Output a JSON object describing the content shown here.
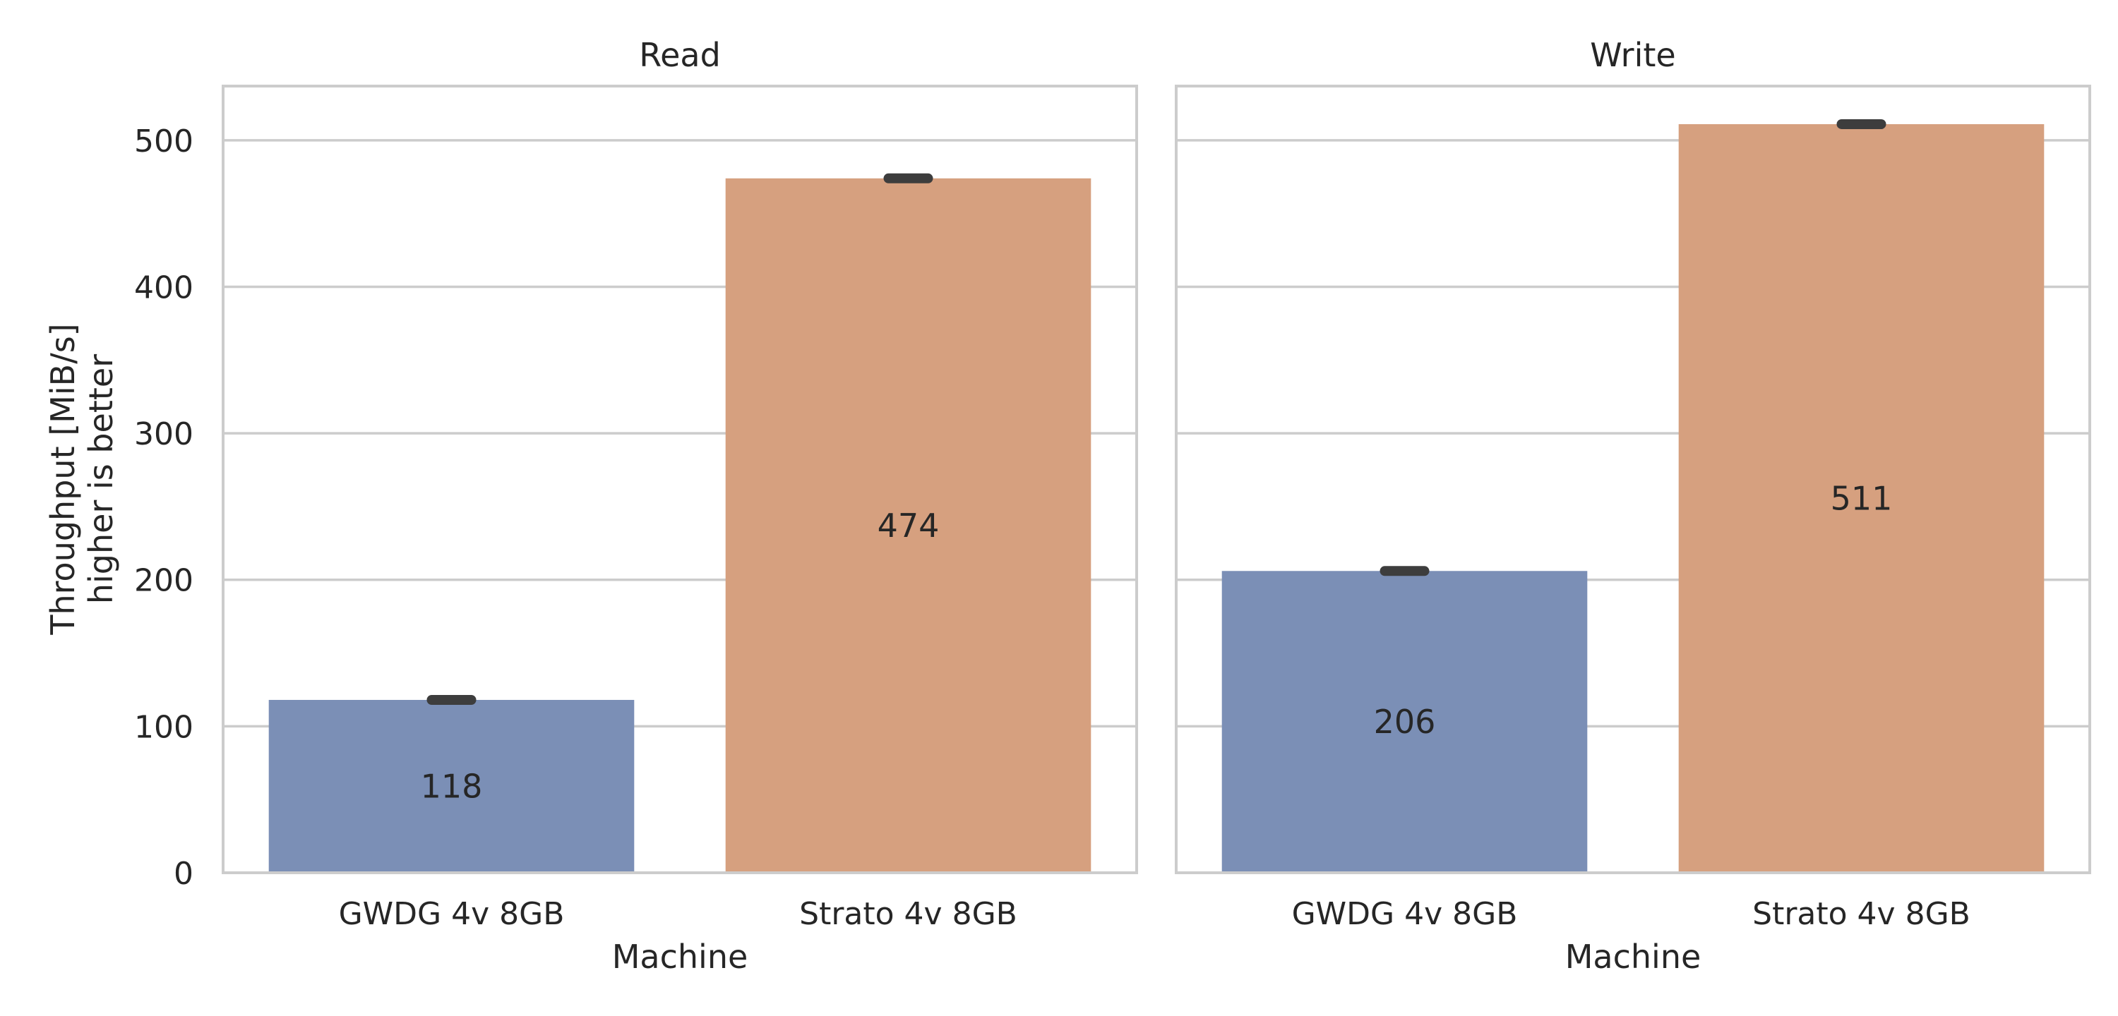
{
  "chart_data": {
    "type": "bar",
    "ylabel": "Throughput  [MiB/s]\nhigher is better",
    "ylim": [
      0,
      537
    ],
    "yticks": [
      0,
      100,
      200,
      300,
      400,
      500
    ],
    "grid": true,
    "shared_y": true,
    "colors": {
      "GWDG 4v 8GB": "#7b8fb6",
      "Strato 4v 8GB": "#d6a07f"
    },
    "panels": [
      {
        "title": "Read",
        "xlabel": "Machine",
        "categories": [
          "GWDG 4v 8GB",
          "Strato 4v 8GB"
        ],
        "values": [
          118,
          474
        ],
        "labels": [
          "118",
          "474"
        ],
        "errors": [
          [
            115.5,
            120.5
          ],
          [
            471.5,
            476.5
          ]
        ]
      },
      {
        "title": "Write",
        "xlabel": "Machine",
        "categories": [
          "GWDG 4v 8GB",
          "Strato 4v 8GB"
        ],
        "values": [
          206,
          511
        ],
        "labels": [
          "206",
          "511"
        ],
        "errors": [
          [
            204.5,
            207.5
          ],
          [
            508.5,
            513.5
          ]
        ]
      }
    ]
  }
}
